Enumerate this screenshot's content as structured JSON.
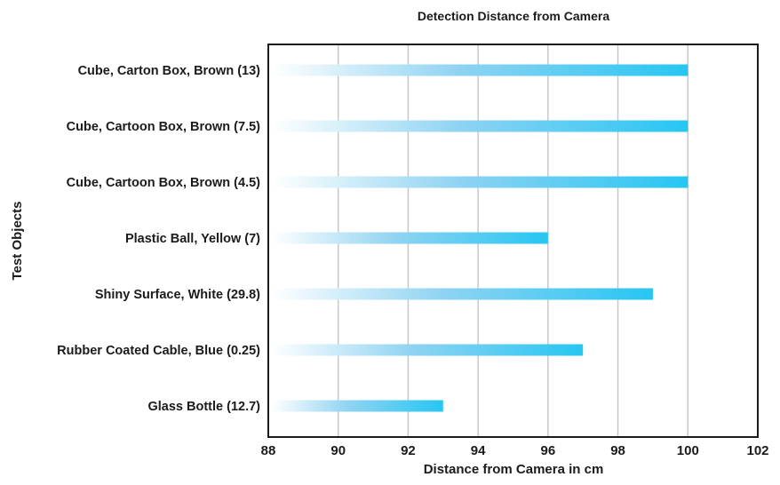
{
  "chart_data": {
    "type": "bar",
    "orientation": "horizontal",
    "title": "Detection Distance from Camera",
    "xlabel": "Distance from Camera in cm",
    "ylabel": "Test Objects",
    "xlim": [
      88,
      102
    ],
    "xticks": [
      88,
      90,
      92,
      94,
      96,
      98,
      100,
      102
    ],
    "grid": "vertical",
    "legend": "none",
    "categories": [
      "Cube, Carton Box, Brown (13)",
      "Cube, Cartoon Box, Brown (7.5)",
      "Cube, Cartoon Box, Brown (4.5)",
      "Plastic Ball, Yellow (7)",
      "Shiny Surface, White (29.8)",
      "Rubber Coated Cable, Blue (0.25)",
      "Glass Bottle (12.7)"
    ],
    "values": [
      100,
      100,
      100,
      96,
      99,
      97,
      93
    ],
    "colors": {
      "bar_start": "#ffffff",
      "bar_end": "#26c6f2",
      "grid": "#c8c8c8",
      "frame": "#1b1b1b",
      "text": "#1b1b1b"
    }
  }
}
